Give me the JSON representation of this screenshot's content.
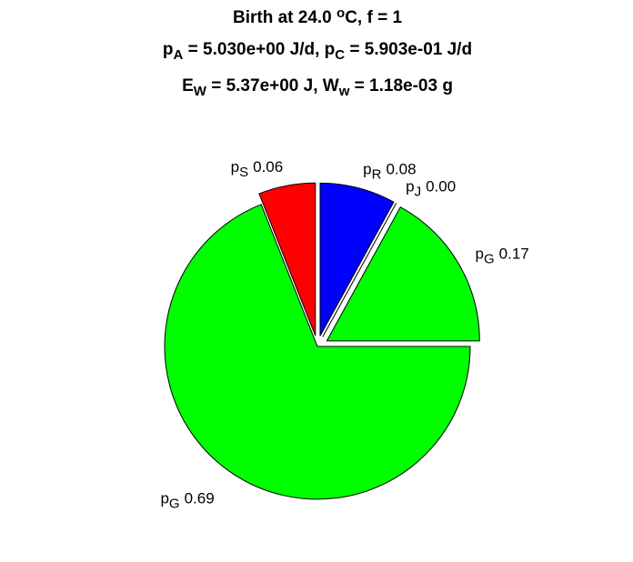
{
  "chart_data": {
    "type": "pie",
    "title_lines": [
      [
        {
          "text": "Birth at 24.0 "
        },
        {
          "text": "o",
          "shift": "super"
        },
        {
          "text": "C, f = 1"
        }
      ],
      [
        {
          "text": "p"
        },
        {
          "text": "A",
          "shift": "sub"
        },
        {
          "text": " = 5.030e+00 J/d, p"
        },
        {
          "text": "C",
          "shift": "sub"
        },
        {
          "text": " = 5.903e-01 J/d"
        }
      ],
      [
        {
          "text": "E"
        },
        {
          "text": "W",
          "shift": "sub"
        },
        {
          "text": " = 5.37e+00 J, W"
        },
        {
          "text": "w",
          "shift": "sub"
        },
        {
          "text": " = 1.18e-03 g"
        }
      ]
    ],
    "category_symbol": "p",
    "categories": [
      "R",
      "J",
      "G",
      "G",
      "S"
    ],
    "values": [
      0.08,
      0.0,
      0.17,
      0.69,
      0.06
    ],
    "value_labels": [
      "0.08",
      "0.00",
      "0.17",
      "0.69",
      "0.06"
    ],
    "colors": [
      "#0000ff",
      "#00ffff",
      "#00ff00",
      "#00ff00",
      "#ff0000"
    ],
    "explode": [
      true,
      true,
      true,
      false,
      true
    ]
  }
}
